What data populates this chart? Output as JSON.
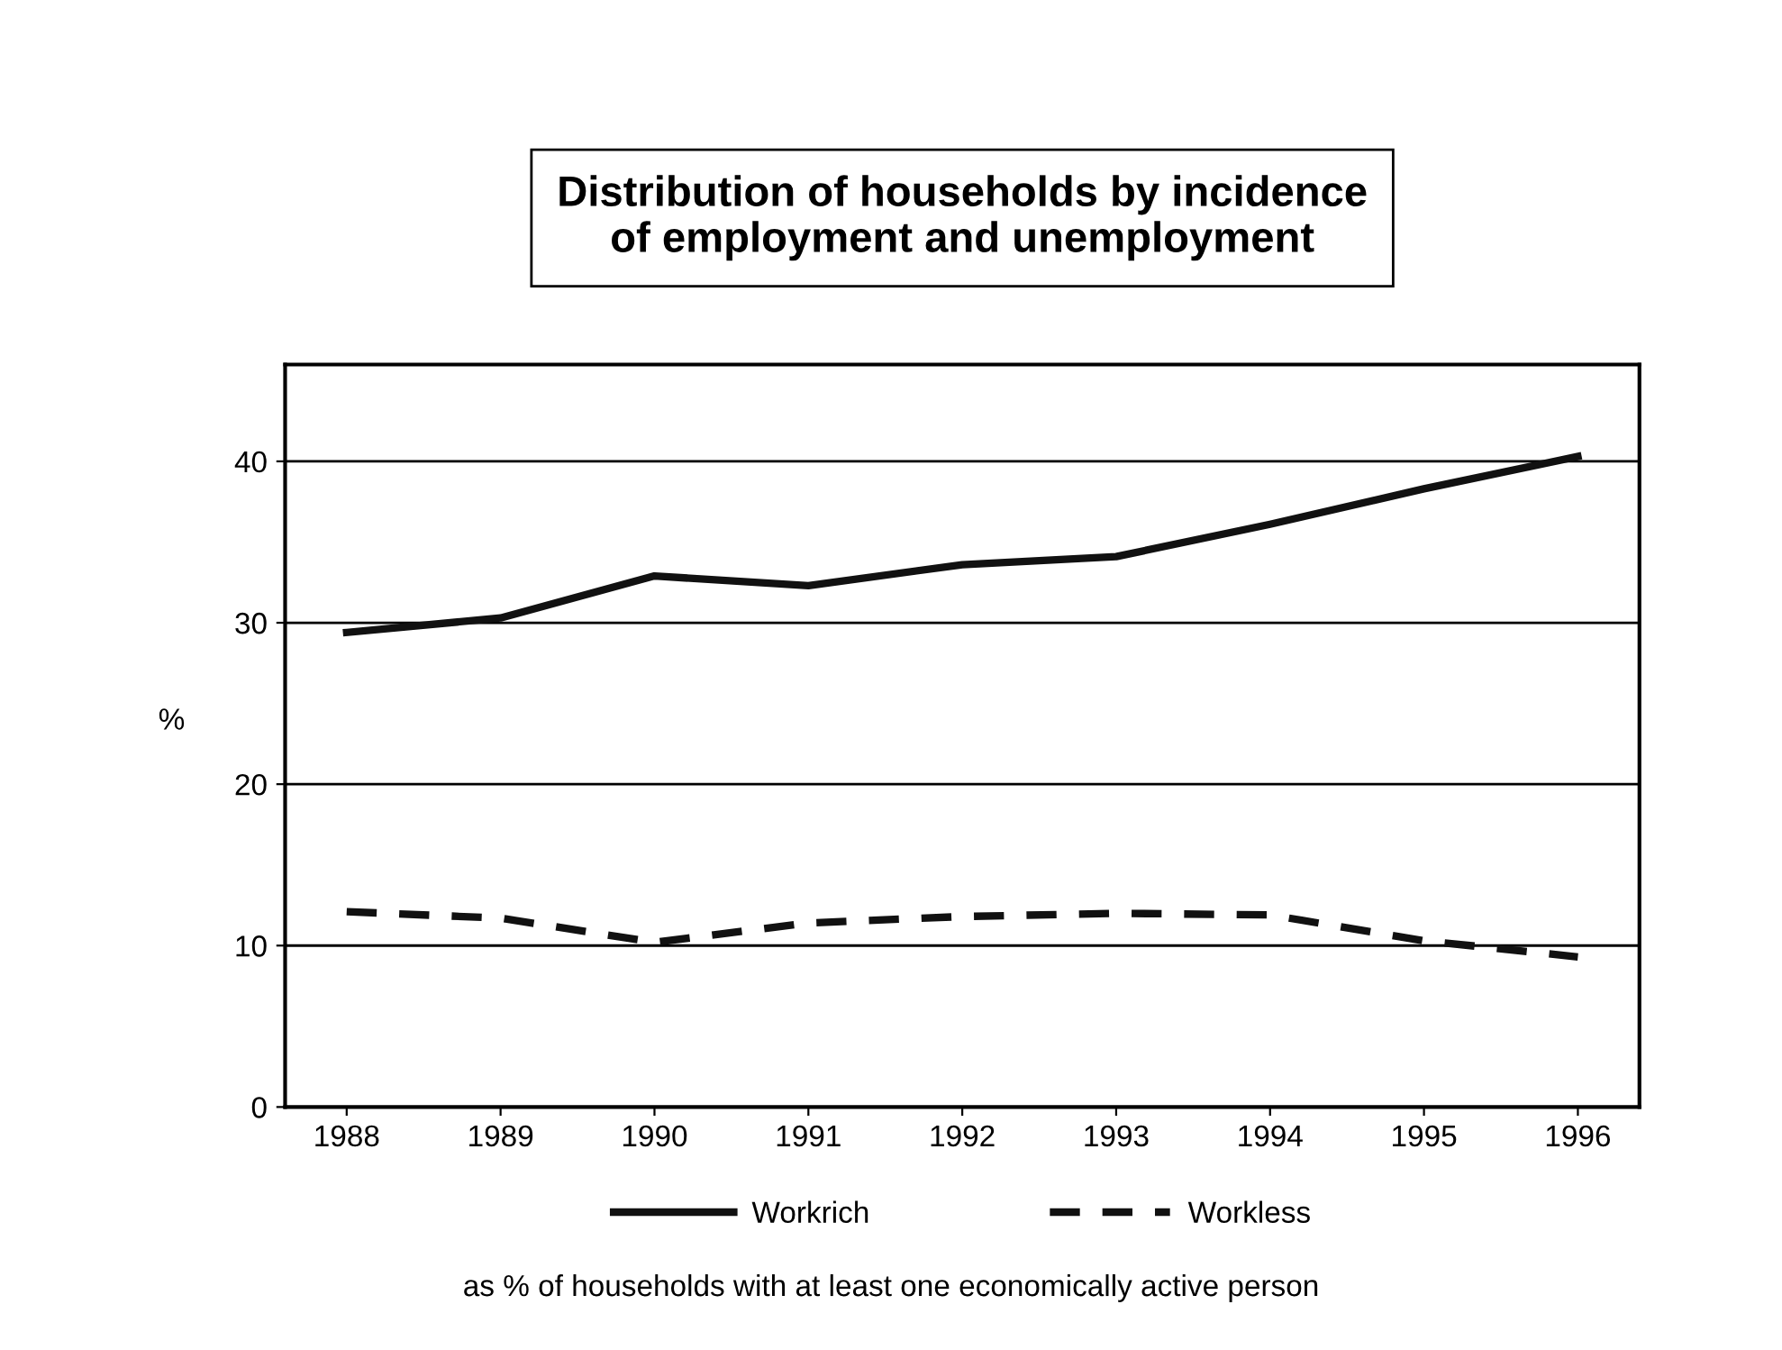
{
  "chart_data": {
    "type": "line",
    "title": "Distribution of households by incidence\nof employment and unemployment",
    "ylabel": "%",
    "categories": [
      "1988",
      "1989",
      "1990",
      "1991",
      "1992",
      "1993",
      "1994",
      "1995",
      "1996"
    ],
    "series": [
      {
        "name": "Workrich",
        "color": "#111111",
        "line_style": "solid",
        "values": [
          29.4,
          30.3,
          32.9,
          32.3,
          33.6,
          34.1,
          36.1,
          38.3,
          40.3
        ]
      },
      {
        "name": "Workless",
        "color": "#111111",
        "line_style": "dashed",
        "values": [
          12.1,
          11.7,
          10.2,
          11.4,
          11.8,
          12.0,
          11.9,
          10.3,
          9.3
        ]
      }
    ],
    "ylim": [
      0,
      46
    ],
    "yticks": [
      0,
      10,
      20,
      30,
      40
    ],
    "grid": "y",
    "legend": "bottom",
    "marker": "none",
    "annotations": [
      "as % of households with at least one economically active person"
    ]
  }
}
